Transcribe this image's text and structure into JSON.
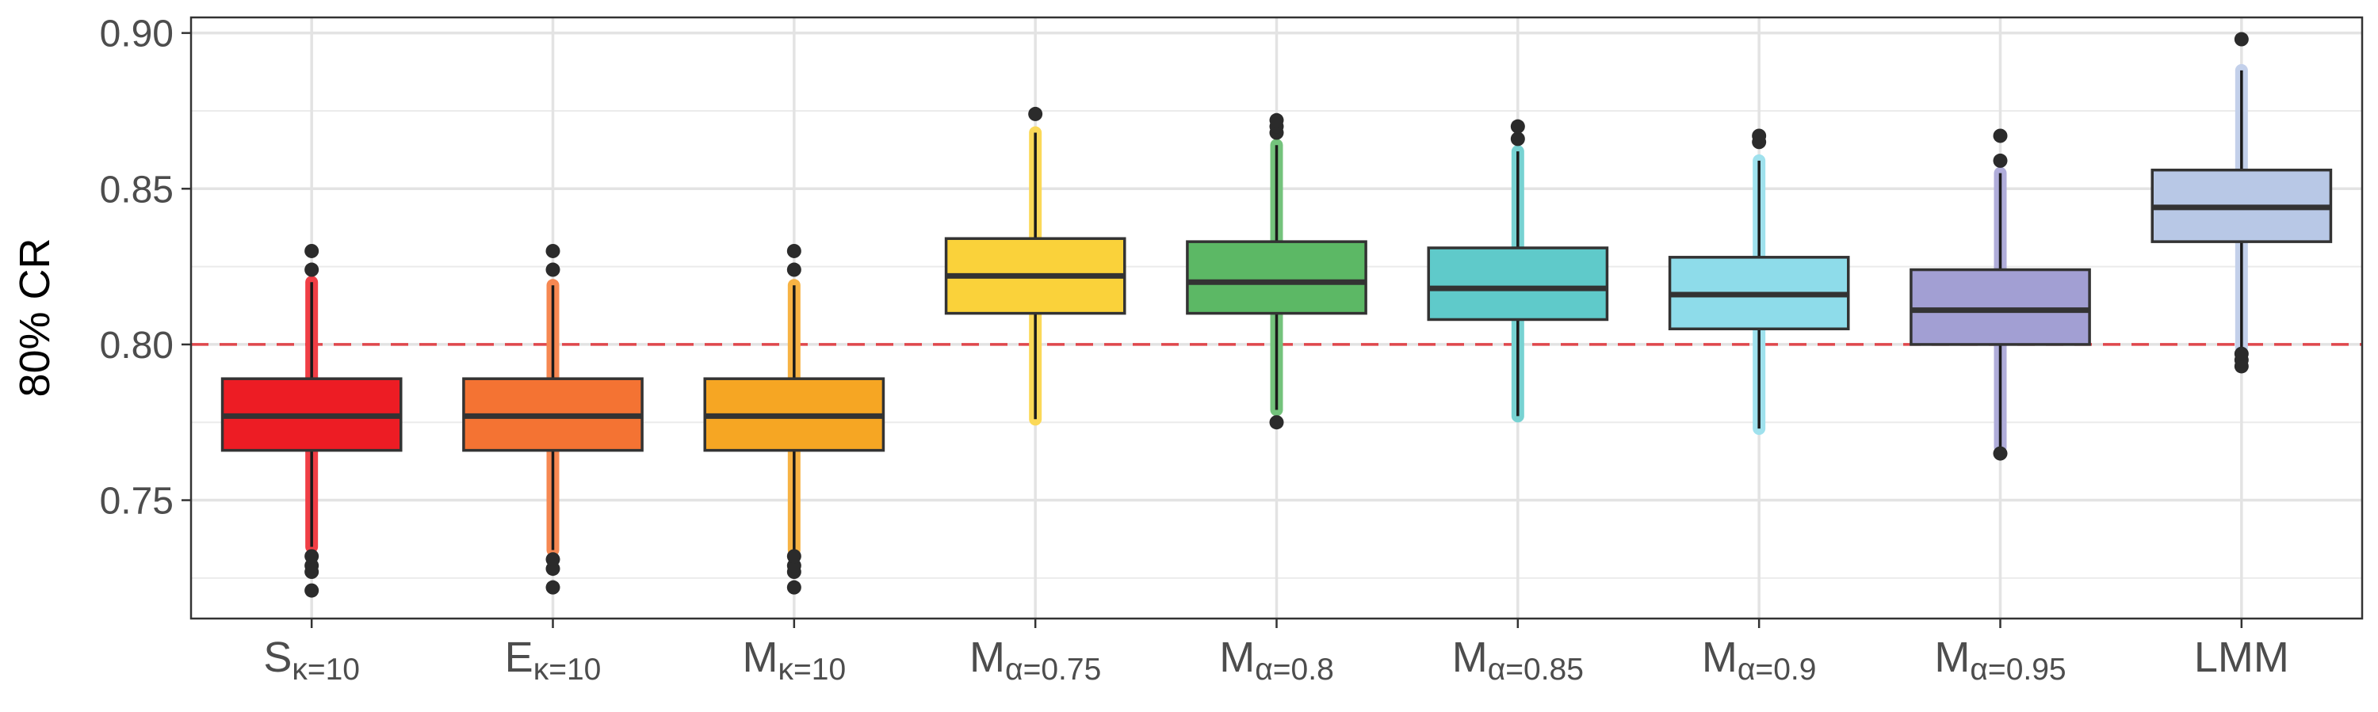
{
  "chart_data": {
    "type": "boxplot",
    "ylabel": "80% CR",
    "xlabel": "",
    "ylim": [
      0.712,
      0.905
    ],
    "yticks": [
      0.75,
      0.8,
      0.85,
      0.9
    ],
    "ytick_labels": [
      "0.75",
      "0.80",
      "0.85",
      "0.90"
    ],
    "grid": true,
    "reference_line": {
      "y": 0.8,
      "style": "dashed",
      "color": "#e0474c"
    },
    "categories": [
      {
        "id": "S_k10",
        "base": "S",
        "sub": "κ=10"
      },
      {
        "id": "E_k10",
        "base": "E",
        "sub": "κ=10"
      },
      {
        "id": "M_k10",
        "base": "M",
        "sub": "κ=10"
      },
      {
        "id": "M_a075",
        "base": "M",
        "sub": "α=0.75"
      },
      {
        "id": "M_a08",
        "base": "M",
        "sub": "α=0.8"
      },
      {
        "id": "M_a085",
        "base": "M",
        "sub": "α=0.85"
      },
      {
        "id": "M_a09",
        "base": "M",
        "sub": "α=0.9"
      },
      {
        "id": "M_a095",
        "base": "M",
        "sub": "α=0.95"
      },
      {
        "id": "LMM",
        "base": "LMM",
        "sub": ""
      }
    ],
    "boxes": [
      {
        "q1": 0.766,
        "median": 0.777,
        "q3": 0.789,
        "whisker_low": 0.735,
        "whisker_high": 0.82,
        "outliers": [
          0.721,
          0.727,
          0.729,
          0.732,
          0.824,
          0.83
        ],
        "fill": "#ed1c24"
      },
      {
        "q1": 0.766,
        "median": 0.777,
        "q3": 0.789,
        "whisker_low": 0.734,
        "whisker_high": 0.819,
        "outliers": [
          0.722,
          0.728,
          0.731,
          0.824,
          0.83
        ],
        "fill": "#f47333"
      },
      {
        "q1": 0.766,
        "median": 0.777,
        "q3": 0.789,
        "whisker_low": 0.734,
        "whisker_high": 0.819,
        "outliers": [
          0.722,
          0.727,
          0.729,
          0.732,
          0.824,
          0.83
        ],
        "fill": "#f6a623"
      },
      {
        "q1": 0.81,
        "median": 0.822,
        "q3": 0.834,
        "whisker_low": 0.776,
        "whisker_high": 0.868,
        "outliers": [
          0.874
        ],
        "fill": "#fad23a"
      },
      {
        "q1": 0.81,
        "median": 0.82,
        "q3": 0.833,
        "whisker_low": 0.779,
        "whisker_high": 0.864,
        "outliers": [
          0.775,
          0.868,
          0.87,
          0.872
        ],
        "fill": "#5cb865"
      },
      {
        "q1": 0.808,
        "median": 0.818,
        "q3": 0.831,
        "whisker_low": 0.777,
        "whisker_high": 0.862,
        "outliers": [
          0.866,
          0.87
        ],
        "fill": "#5fcaca"
      },
      {
        "q1": 0.805,
        "median": 0.816,
        "q3": 0.828,
        "whisker_low": 0.773,
        "whisker_high": 0.859,
        "outliers": [
          0.865,
          0.867
        ],
        "fill": "#8edcea"
      },
      {
        "q1": 0.8,
        "median": 0.811,
        "q3": 0.824,
        "whisker_low": 0.767,
        "whisker_high": 0.855,
        "outliers": [
          0.765,
          0.859,
          0.867
        ],
        "fill": "#a29fd3"
      },
      {
        "q1": 0.833,
        "median": 0.844,
        "q3": 0.856,
        "whisker_low": 0.799,
        "whisker_high": 0.888,
        "outliers": [
          0.793,
          0.795,
          0.797,
          0.898
        ],
        "fill": "#b8c8e6"
      }
    ]
  }
}
